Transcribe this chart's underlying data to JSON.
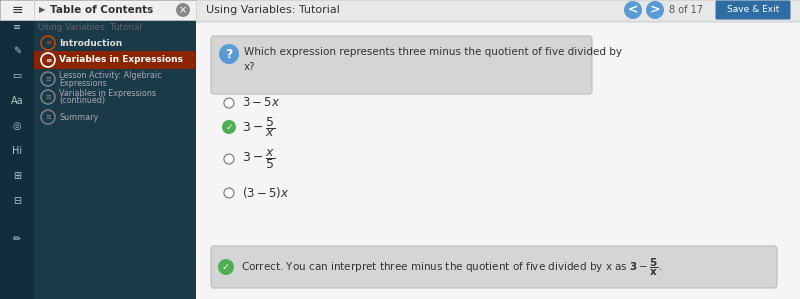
{
  "title": "Using Variables: Tutorial",
  "page_info": "8 of 17",
  "sidebar_bg": "#1a3a4a",
  "toc_title": "Table of Contents",
  "toc_subtitle": "Using Variables: Tutorial",
  "toc_items": [
    {
      "label": "Introduction",
      "active": false,
      "disabled": false
    },
    {
      "label": "Variables in Expressions",
      "active": true,
      "disabled": false
    },
    {
      "label": "Lesson Activity: Algebraic\nExpressions",
      "active": false,
      "disabled": true
    },
    {
      "label": "Variables in Expressions\n(continued)",
      "active": false,
      "disabled": true
    },
    {
      "label": "Summary",
      "active": false,
      "disabled": true
    }
  ],
  "active_item_color": "#8b2500",
  "question_icon_color": "#5b9bd5",
  "answer_correct_icon": "#4caf50",
  "feedback_icon_color": "#4caf50",
  "nav_button_color": "#5b9bd5",
  "save_exit_color": "#2e6da4"
}
